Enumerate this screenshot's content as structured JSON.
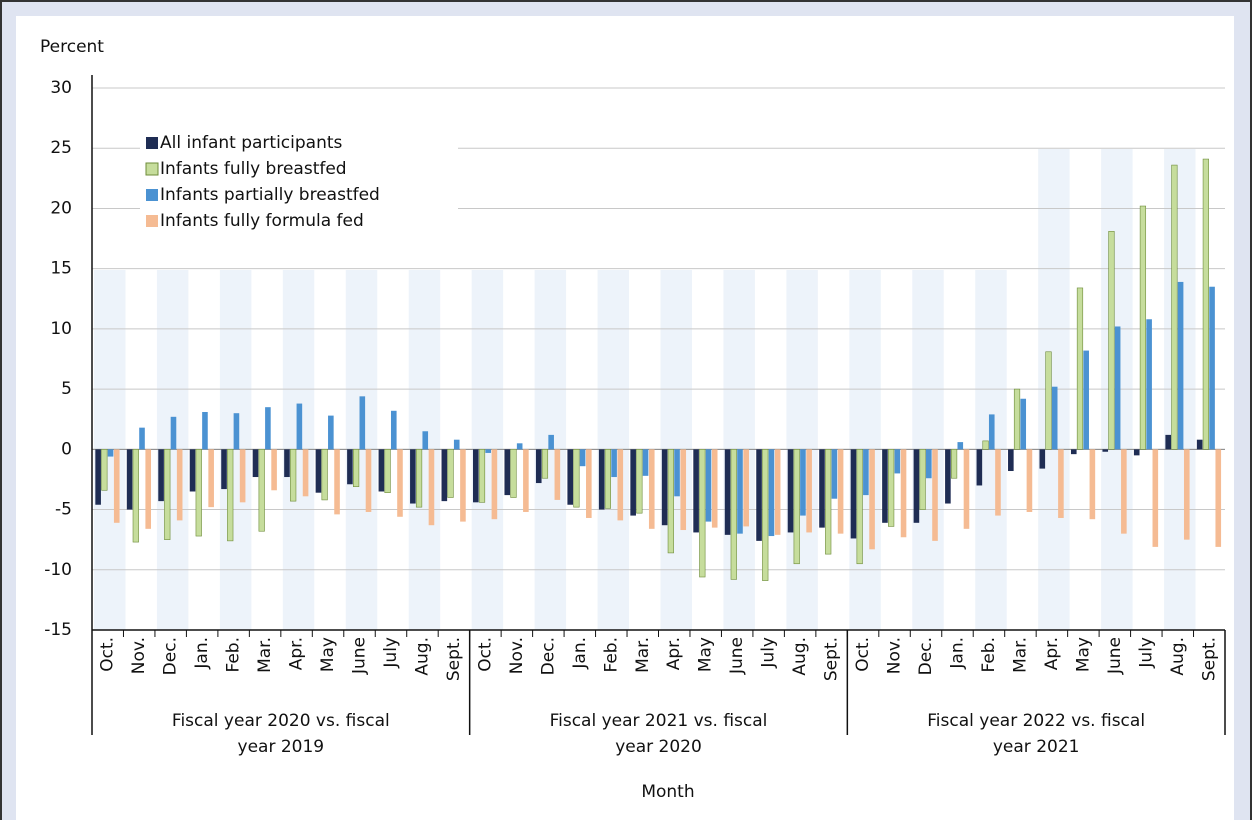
{
  "chart_data": {
    "type": "bar",
    "y_label": "Percent",
    "x_label": "Month",
    "categories": [
      "Oct.",
      "Nov.",
      "Dec.",
      "Jan.",
      "Feb.",
      "Mar.",
      "Apr.",
      "May",
      "June",
      "July",
      "Aug.",
      "Sept.",
      "Oct.",
      "Nov.",
      "Dec.",
      "Jan.",
      "Feb.",
      "Mar.",
      "Apr.",
      "May",
      "June",
      "July",
      "Aug.",
      "Sept.",
      "Oct.",
      "Nov.",
      "Dec.",
      "Jan.",
      "Feb.",
      "Mar.",
      "Apr.",
      "May",
      "June",
      "July",
      "Aug.",
      "Sept."
    ],
    "groups": [
      "Fiscal year 2020 vs. fiscal year 2019",
      "Fiscal year 2021 vs. fiscal year 2020",
      "Fiscal year 2022 vs. fiscal year 2021"
    ],
    "series": [
      {
        "name": "All infant participants",
        "color": "#1f2d54",
        "values": [
          -4.6,
          -5.0,
          -4.3,
          -3.5,
          -3.3,
          -2.3,
          -2.3,
          -3.6,
          -2.9,
          -3.5,
          -4.5,
          -4.3,
          -4.4,
          -3.8,
          -2.8,
          -4.6,
          -5.0,
          -5.5,
          -6.3,
          -6.9,
          -7.1,
          -7.6,
          -6.9,
          -6.5,
          -7.4,
          -6.1,
          -6.1,
          -4.5,
          -3.0,
          -1.8,
          -1.6,
          -0.4,
          -0.2,
          -0.5,
          1.2,
          0.8
        ]
      },
      {
        "name": "Infants fully breastfed",
        "color": "#c6dd9c",
        "values": [
          -3.4,
          -7.7,
          -7.5,
          -7.2,
          -7.6,
          -6.8,
          -4.3,
          -4.2,
          -3.1,
          -3.6,
          -4.8,
          -4.0,
          -4.4,
          -4.0,
          -2.4,
          -4.8,
          -4.9,
          -5.3,
          -8.6,
          -10.6,
          -10.8,
          -10.9,
          -9.5,
          -8.7,
          -9.5,
          -6.4,
          -5.0,
          -2.4,
          0.7,
          5.0,
          8.1,
          13.4,
          18.1,
          20.2,
          23.6,
          24.1
        ]
      },
      {
        "name": "Infants partially breastfed",
        "color": "#4b92d2",
        "values": [
          -0.6,
          1.8,
          2.7,
          3.1,
          3.0,
          3.5,
          3.8,
          2.8,
          4.4,
          3.2,
          1.5,
          0.8,
          -0.3,
          0.5,
          1.2,
          -1.4,
          -2.3,
          -2.2,
          -3.9,
          -6.0,
          -7.0,
          -7.2,
          -5.5,
          -4.1,
          -3.8,
          -2.0,
          -2.4,
          0.6,
          2.9,
          4.2,
          5.2,
          8.2,
          10.2,
          10.8,
          13.9,
          13.5
        ]
      },
      {
        "name": "Infants fully formula fed",
        "color": "#f5bb93",
        "values": [
          -6.1,
          -6.6,
          -5.9,
          -4.8,
          -4.4,
          -3.4,
          -3.9,
          -5.4,
          -5.2,
          -5.6,
          -6.3,
          -6.0,
          -5.8,
          -5.2,
          -4.2,
          -5.7,
          -5.9,
          -6.6,
          -6.7,
          -6.5,
          -6.4,
          -7.1,
          -6.9,
          -7.0,
          -8.3,
          -7.3,
          -7.6,
          -6.6,
          -5.5,
          -5.2,
          -5.7,
          -5.8,
          -7.0,
          -8.1,
          -7.5,
          -8.1
        ]
      }
    ],
    "ylim": [
      -15,
      30
    ],
    "yticks": [
      -15,
      -10,
      -5,
      0,
      5,
      10,
      15,
      20,
      25,
      30
    ],
    "grid": true,
    "legend": "top-left"
  }
}
